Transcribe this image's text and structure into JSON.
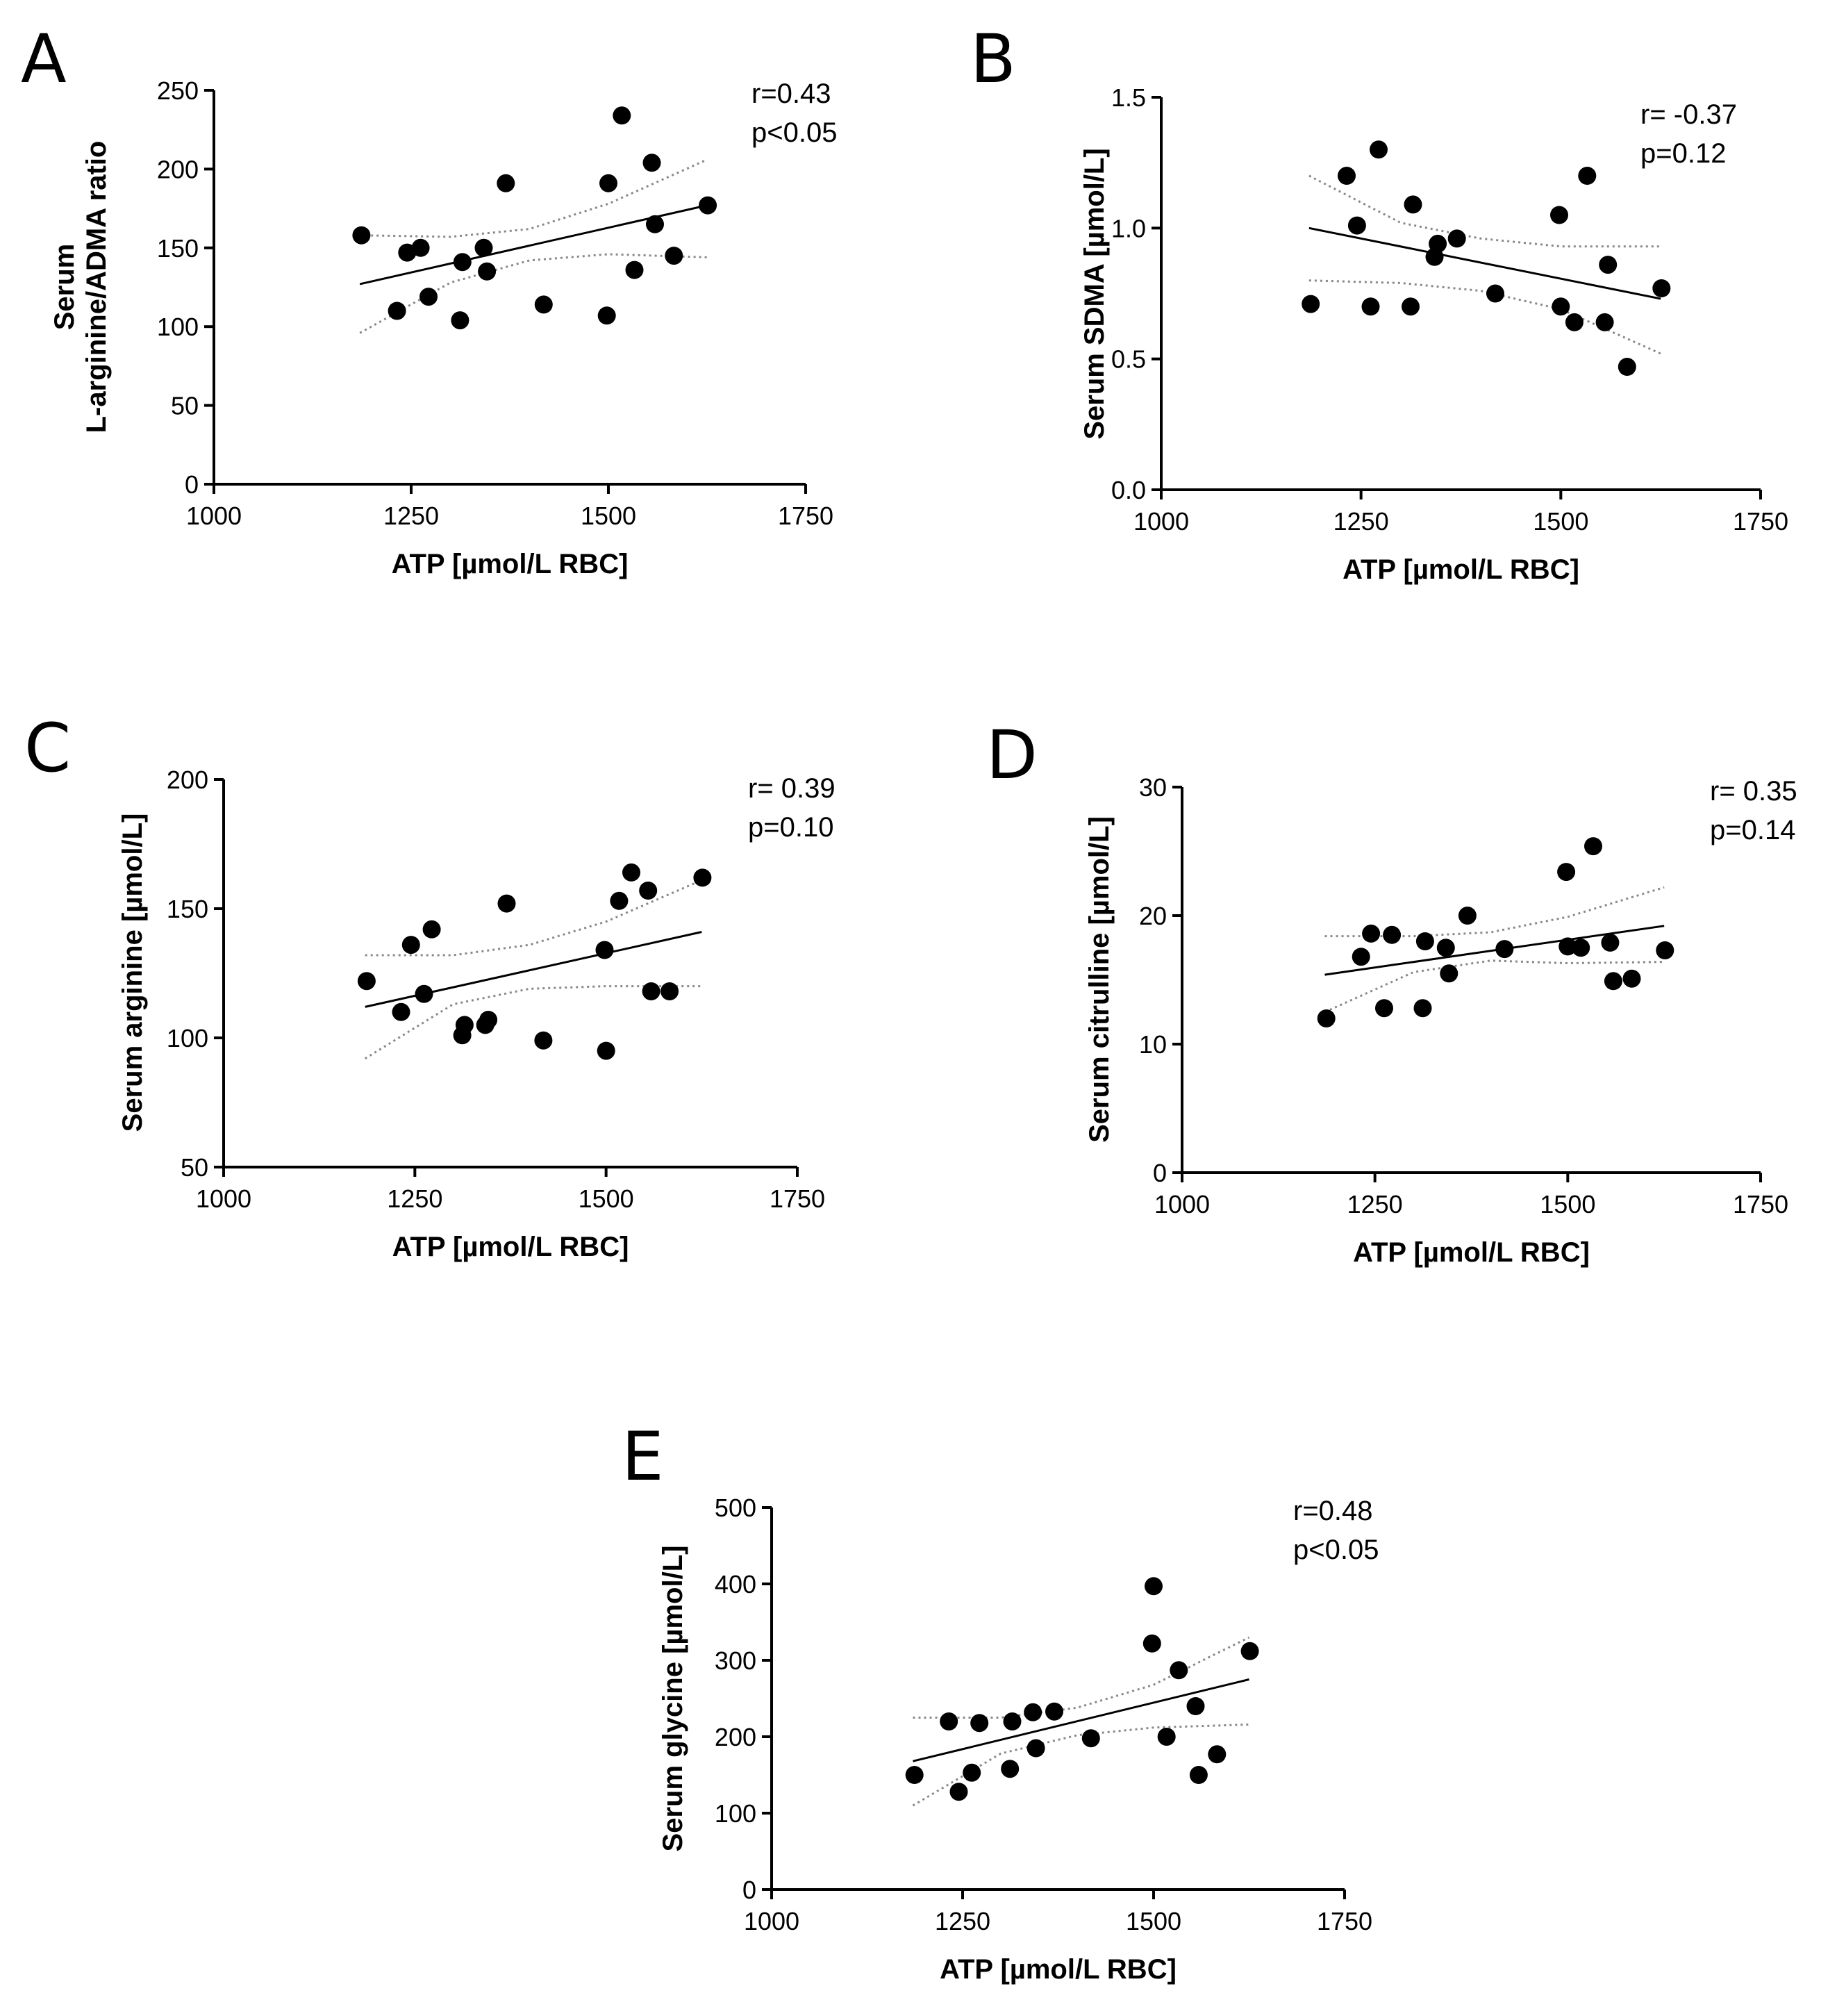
{
  "figure": {
    "background": "#ffffff",
    "point_color": "#000000",
    "fit_line_color": "#000000",
    "ci_line_color": "#888888"
  },
  "chart_data": [
    {
      "panel": "A",
      "type": "scatter",
      "xlabel": "ATP [µmol/L RBC]",
      "ylabel": [
        "Serum",
        "L-arginine/ADMA ratio"
      ],
      "xlim": [
        1000,
        1750
      ],
      "ylim": [
        0,
        250
      ],
      "xticks": [
        1000,
        1250,
        1500,
        1750
      ],
      "yticks": [
        0,
        50,
        100,
        150,
        200,
        250
      ],
      "tick_labels_x": [
        "1000",
        "1250",
        "1500",
        "1750"
      ],
      "tick_labels_y": [
        "0",
        "50",
        "100",
        "150",
        "200",
        "250"
      ],
      "decimals": 0,
      "stats": [
        "r=0.43",
        "p<0.05"
      ],
      "fit": {
        "x": [
          1185,
          1625
        ],
        "y": [
          127,
          177
        ]
      },
      "ci_upper": {
        "x": [
          1185,
          1300,
          1400,
          1500,
          1625
        ],
        "y": [
          158,
          157,
          162,
          178,
          206
        ]
      },
      "ci_lower": {
        "x": [
          1185,
          1300,
          1400,
          1500,
          1625
        ],
        "y": [
          96,
          128,
          142,
          146,
          144
        ]
      },
      "points": [
        {
          "x": 1187,
          "y": 158
        },
        {
          "x": 1232,
          "y": 110
        },
        {
          "x": 1245,
          "y": 147
        },
        {
          "x": 1262,
          "y": 150
        },
        {
          "x": 1272,
          "y": 119
        },
        {
          "x": 1312,
          "y": 104
        },
        {
          "x": 1315,
          "y": 141
        },
        {
          "x": 1342,
          "y": 150
        },
        {
          "x": 1346,
          "y": 135
        },
        {
          "x": 1370,
          "y": 191
        },
        {
          "x": 1418,
          "y": 114
        },
        {
          "x": 1498,
          "y": 107
        },
        {
          "x": 1500,
          "y": 191
        },
        {
          "x": 1517,
          "y": 234
        },
        {
          "x": 1533,
          "y": 136
        },
        {
          "x": 1555,
          "y": 204
        },
        {
          "x": 1559,
          "y": 165
        },
        {
          "x": 1583,
          "y": 145
        },
        {
          "x": 1626,
          "y": 177
        }
      ]
    },
    {
      "panel": "B",
      "type": "scatter",
      "xlabel": "ATP [µmol/L RBC]",
      "ylabel": [
        "Serum SDMA [µmol/L]"
      ],
      "xlim": [
        1000,
        1750
      ],
      "ylim": [
        0,
        1.5
      ],
      "xticks": [
        1000,
        1250,
        1500,
        1750
      ],
      "yticks": [
        0,
        0.5,
        1.0,
        1.5
      ],
      "tick_labels_x": [
        "1000",
        "1250",
        "1500",
        "1750"
      ],
      "tick_labels_y": [
        "0.0",
        "0.5",
        "1.0",
        "1.5"
      ],
      "decimals": 1,
      "stats": [
        "r= -0.37",
        "p=0.12"
      ],
      "fit": {
        "x": [
          1185,
          1625
        ],
        "y": [
          1.0,
          0.73
        ]
      },
      "ci_upper": {
        "x": [
          1185,
          1300,
          1400,
          1500,
          1625
        ],
        "y": [
          1.2,
          1.02,
          0.96,
          0.93,
          0.93
        ]
      },
      "ci_lower": {
        "x": [
          1185,
          1300,
          1400,
          1500,
          1625
        ],
        "y": [
          0.8,
          0.79,
          0.76,
          0.69,
          0.52
        ]
      },
      "points": [
        {
          "x": 1187,
          "y": 0.71
        },
        {
          "x": 1232,
          "y": 1.2
        },
        {
          "x": 1245,
          "y": 1.01
        },
        {
          "x": 1262,
          "y": 0.7
        },
        {
          "x": 1272,
          "y": 1.3
        },
        {
          "x": 1312,
          "y": 0.7
        },
        {
          "x": 1315,
          "y": 1.09
        },
        {
          "x": 1342,
          "y": 0.89
        },
        {
          "x": 1346,
          "y": 0.94
        },
        {
          "x": 1370,
          "y": 0.96
        },
        {
          "x": 1418,
          "y": 0.75
        },
        {
          "x": 1498,
          "y": 1.05
        },
        {
          "x": 1500,
          "y": 0.7
        },
        {
          "x": 1517,
          "y": 0.64
        },
        {
          "x": 1533,
          "y": 1.2
        },
        {
          "x": 1555,
          "y": 0.64
        },
        {
          "x": 1559,
          "y": 0.86
        },
        {
          "x": 1583,
          "y": 0.47
        },
        {
          "x": 1626,
          "y": 0.77
        }
      ]
    },
    {
      "panel": "C",
      "type": "scatter",
      "xlabel": "ATP [µmol/L RBC]",
      "ylabel": [
        "Serum arginine [µmol/L]"
      ],
      "xlim": [
        1000,
        1750
      ],
      "ylim": [
        50,
        200
      ],
      "xticks": [
        1000,
        1250,
        1500,
        1750
      ],
      "yticks": [
        50,
        100,
        150,
        200
      ],
      "tick_labels_x": [
        "1000",
        "1250",
        "1500",
        "1750"
      ],
      "tick_labels_y": [
        "50",
        "100",
        "150",
        "200"
      ],
      "decimals": 0,
      "stats": [
        "r= 0.39",
        "p=0.10"
      ],
      "fit": {
        "x": [
          1185,
          1625
        ],
        "y": [
          112,
          141
        ]
      },
      "ci_upper": {
        "x": [
          1185,
          1300,
          1400,
          1500,
          1625
        ],
        "y": [
          132,
          132,
          136,
          145,
          161
        ]
      },
      "ci_lower": {
        "x": [
          1185,
          1300,
          1400,
          1500,
          1625
        ],
        "y": [
          92,
          113,
          119,
          120,
          120
        ]
      },
      "points": [
        {
          "x": 1187,
          "y": 122
        },
        {
          "x": 1232,
          "y": 110
        },
        {
          "x": 1245,
          "y": 136
        },
        {
          "x": 1262,
          "y": 117
        },
        {
          "x": 1272,
          "y": 142
        },
        {
          "x": 1312,
          "y": 101
        },
        {
          "x": 1315,
          "y": 105
        },
        {
          "x": 1342,
          "y": 105
        },
        {
          "x": 1346,
          "y": 107
        },
        {
          "x": 1370,
          "y": 152
        },
        {
          "x": 1418,
          "y": 99
        },
        {
          "x": 1498,
          "y": 134
        },
        {
          "x": 1500,
          "y": 95
        },
        {
          "x": 1517,
          "y": 153
        },
        {
          "x": 1533,
          "y": 164
        },
        {
          "x": 1555,
          "y": 157
        },
        {
          "x": 1559,
          "y": 118
        },
        {
          "x": 1583,
          "y": 118
        },
        {
          "x": 1626,
          "y": 162
        }
      ]
    },
    {
      "panel": "D",
      "type": "scatter",
      "xlabel": "ATP [µmol/L RBC]",
      "ylabel": [
        "Serum citrulline [µmol/L]"
      ],
      "xlim": [
        1000,
        1750
      ],
      "ylim": [
        0,
        30
      ],
      "xticks": [
        1000,
        1250,
        1500,
        1750
      ],
      "yticks": [
        0,
        10,
        20,
        30
      ],
      "tick_labels_x": [
        "1000",
        "1250",
        "1500",
        "1750"
      ],
      "tick_labels_y": [
        "0",
        "10",
        "20",
        "30"
      ],
      "decimals": 0,
      "stats": [
        "r= 0.35",
        "p=0.14"
      ],
      "fit": {
        "x": [
          1185,
          1625
        ],
        "y": [
          15.4,
          19.2
        ]
      },
      "ci_upper": {
        "x": [
          1185,
          1300,
          1400,
          1500,
          1625
        ],
        "y": [
          18.4,
          18.4,
          18.7,
          19.9,
          22.2
        ]
      },
      "ci_lower": {
        "x": [
          1185,
          1300,
          1400,
          1500,
          1625
        ],
        "y": [
          12.5,
          15.6,
          16.5,
          16.3,
          16.4
        ]
      },
      "points": [
        {
          "x": 1187,
          "y": 12.0
        },
        {
          "x": 1232,
          "y": 16.8
        },
        {
          "x": 1245,
          "y": 18.6
        },
        {
          "x": 1262,
          "y": 12.8
        },
        {
          "x": 1272,
          "y": 18.5
        },
        {
          "x": 1312,
          "y": 12.8
        },
        {
          "x": 1315,
          "y": 18.0
        },
        {
          "x": 1342,
          "y": 17.5
        },
        {
          "x": 1346,
          "y": 15.5
        },
        {
          "x": 1370,
          "y": 20.0
        },
        {
          "x": 1418,
          "y": 17.4
        },
        {
          "x": 1498,
          "y": 23.4
        },
        {
          "x": 1500,
          "y": 17.6
        },
        {
          "x": 1517,
          "y": 17.5
        },
        {
          "x": 1533,
          "y": 25.4
        },
        {
          "x": 1555,
          "y": 17.9
        },
        {
          "x": 1559,
          "y": 14.9
        },
        {
          "x": 1583,
          "y": 15.1
        },
        {
          "x": 1626,
          "y": 17.3
        }
      ]
    },
    {
      "panel": "E",
      "type": "scatter",
      "xlabel": "ATP [µmol/L RBC]",
      "ylabel": [
        "Serum glycine [µmol/L]"
      ],
      "xlim": [
        1000,
        1750
      ],
      "ylim": [
        0,
        500
      ],
      "xticks": [
        1000,
        1250,
        1500,
        1750
      ],
      "yticks": [
        0,
        100,
        200,
        300,
        400,
        500
      ],
      "tick_labels_x": [
        "1000",
        "1250",
        "1500",
        "1750"
      ],
      "tick_labels_y": [
        "0",
        "100",
        "200",
        "300",
        "400",
        "500"
      ],
      "decimals": 0,
      "stats": [
        "r=0.48",
        "p<0.05"
      ],
      "fit": {
        "x": [
          1185,
          1625
        ],
        "y": [
          168,
          275
        ]
      },
      "ci_upper": {
        "x": [
          1185,
          1300,
          1400,
          1500,
          1625
        ],
        "y": [
          225,
          225,
          238,
          268,
          330
        ]
      },
      "ci_lower": {
        "x": [
          1185,
          1300,
          1400,
          1500,
          1625
        ],
        "y": [
          110,
          178,
          202,
          212,
          216
        ]
      },
      "points": [
        {
          "x": 1187,
          "y": 150
        },
        {
          "x": 1232,
          "y": 220
        },
        {
          "x": 1245,
          "y": 128
        },
        {
          "x": 1262,
          "y": 153
        },
        {
          "x": 1272,
          "y": 218
        },
        {
          "x": 1312,
          "y": 158
        },
        {
          "x": 1315,
          "y": 220
        },
        {
          "x": 1342,
          "y": 232
        },
        {
          "x": 1346,
          "y": 185
        },
        {
          "x": 1370,
          "y": 233
        },
        {
          "x": 1418,
          "y": 198
        },
        {
          "x": 1498,
          "y": 322
        },
        {
          "x": 1500,
          "y": 397
        },
        {
          "x": 1517,
          "y": 200
        },
        {
          "x": 1533,
          "y": 287
        },
        {
          "x": 1555,
          "y": 240
        },
        {
          "x": 1559,
          "y": 150
        },
        {
          "x": 1583,
          "y": 177
        },
        {
          "x": 1626,
          "y": 312
        }
      ]
    }
  ]
}
